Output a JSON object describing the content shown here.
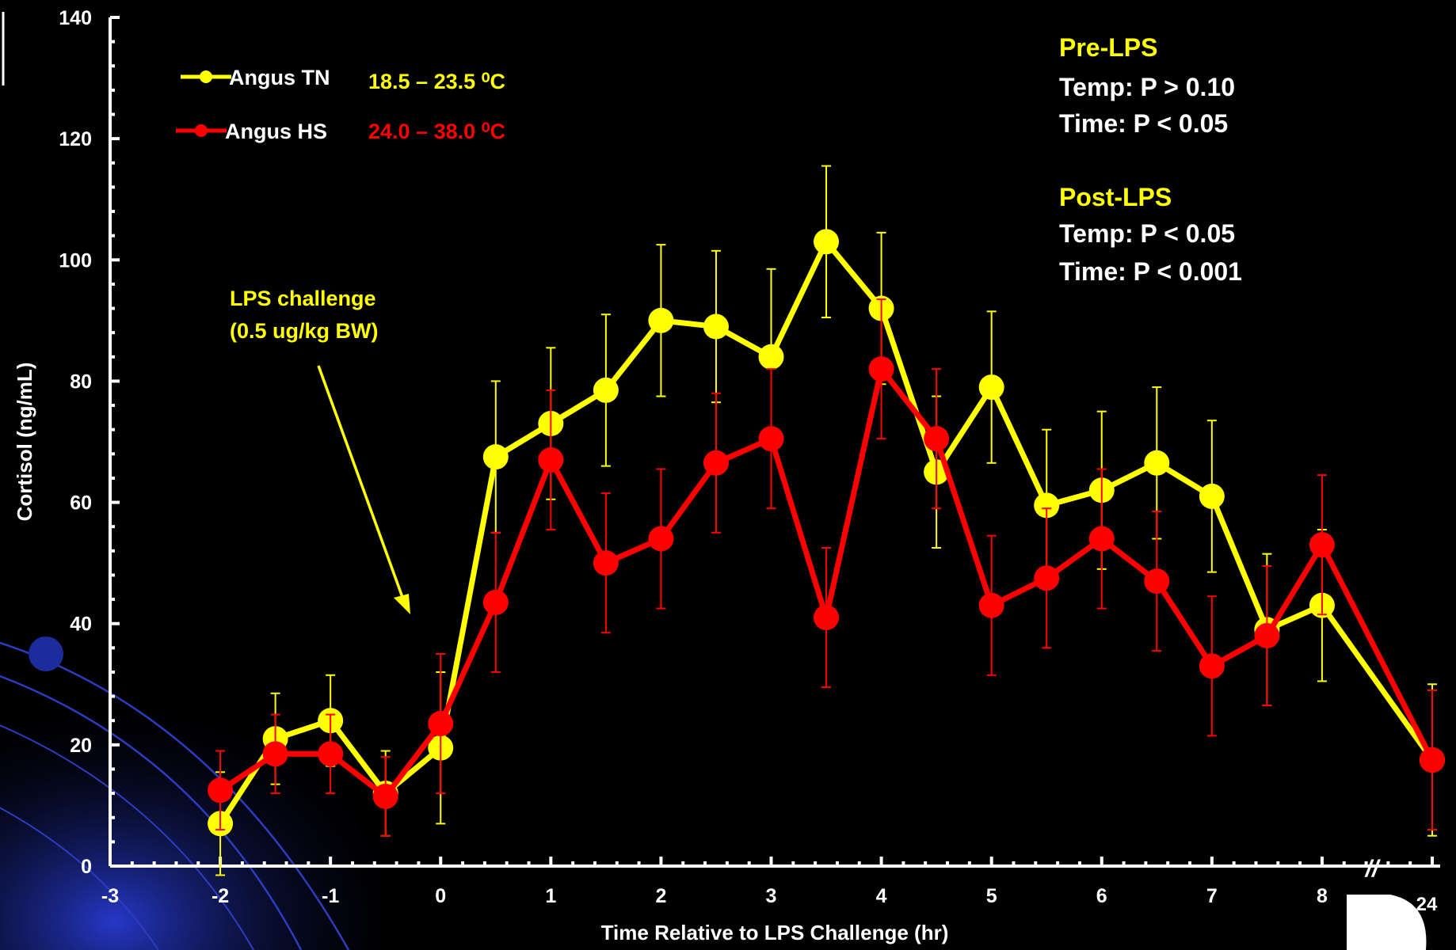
{
  "chart_data": {
    "type": "line",
    "xlabel": "Time Relative to LPS Challenge (hr)",
    "ylabel": "Cortisol (ng/mL)",
    "xlim": [
      -3,
      9
    ],
    "ylim": [
      0,
      140
    ],
    "x_ticks": [
      -3,
      -2,
      -1,
      0,
      1,
      2,
      3,
      4,
      5,
      6,
      7,
      8
    ],
    "x_tick_labels": [
      "-3",
      "-2",
      "-1",
      "0",
      "1",
      "2",
      "3",
      "4",
      "5",
      "6",
      "7",
      "8"
    ],
    "y_ticks": [
      0,
      20,
      40,
      60,
      80,
      100,
      120,
      140
    ],
    "y_tick_labels": [
      "0",
      "20",
      "40",
      "60",
      "80",
      "100",
      "120",
      "140"
    ],
    "break": {
      "symbol": "//",
      "label": "24",
      "position": 9
    },
    "grid": false,
    "legend_position": "top-left",
    "series": [
      {
        "name": "Angus TN",
        "range_label": "18.5 – 23.5 ⁰C",
        "color": "#FFFF00",
        "x": [
          -2,
          -1.5,
          -1,
          -0.5,
          0,
          0.5,
          1,
          1.5,
          2,
          2.5,
          3,
          3.5,
          4,
          4.5,
          5,
          5.5,
          6,
          6.5,
          7,
          7.5,
          8,
          9
        ],
        "values": [
          7,
          21,
          24,
          12,
          19.5,
          67.5,
          73,
          78.5,
          90,
          89,
          84,
          103,
          92,
          65,
          79,
          59.5,
          62,
          66.5,
          61,
          39,
          43,
          17.5
        ],
        "error": [
          8.5,
          7.5,
          7.5,
          7,
          12.5,
          12.5,
          12.5,
          12.5,
          12.5,
          12.5,
          14.5,
          12.5,
          12.5,
          12.5,
          12.5,
          12.5,
          13,
          12.5,
          12.5,
          12.5,
          12.5,
          12.5
        ]
      },
      {
        "name": "Angus HS",
        "range_label": "24.0 – 38.0 ⁰C",
        "color": "#FF0000",
        "x": [
          -2,
          -1.5,
          -1,
          -0.5,
          0,
          0.5,
          1,
          1.5,
          2,
          2.5,
          3,
          3.5,
          4,
          4.5,
          5,
          5.5,
          6,
          6.5,
          7,
          7.5,
          8,
          9
        ],
        "values": [
          12.5,
          18.5,
          18.5,
          11.5,
          23.5,
          43.5,
          67,
          50,
          54,
          66.5,
          70.5,
          41,
          82,
          70.5,
          43,
          47.5,
          54,
          47,
          33,
          38,
          53,
          17.5
        ],
        "error": [
          6.5,
          6.5,
          6.5,
          6.5,
          11.5,
          11.5,
          11.5,
          11.5,
          11.5,
          11.5,
          11.5,
          11.5,
          11.5,
          11.5,
          11.5,
          11.5,
          11.5,
          11.5,
          11.5,
          11.5,
          11.5,
          11.5
        ]
      }
    ],
    "annotations": {
      "lps": {
        "line1": "LPS challenge",
        "line2": "(0.5 ug/kg BW)",
        "color": "#FFFF00"
      },
      "pre_title": "Pre-LPS",
      "pre_temp": "Temp: P > 0.10",
      "pre_time": "Time: P < 0.05",
      "post_title": "Post-LPS",
      "post_temp": "Temp: P < 0.05",
      "post_time": "Time: P < 0.001"
    }
  }
}
